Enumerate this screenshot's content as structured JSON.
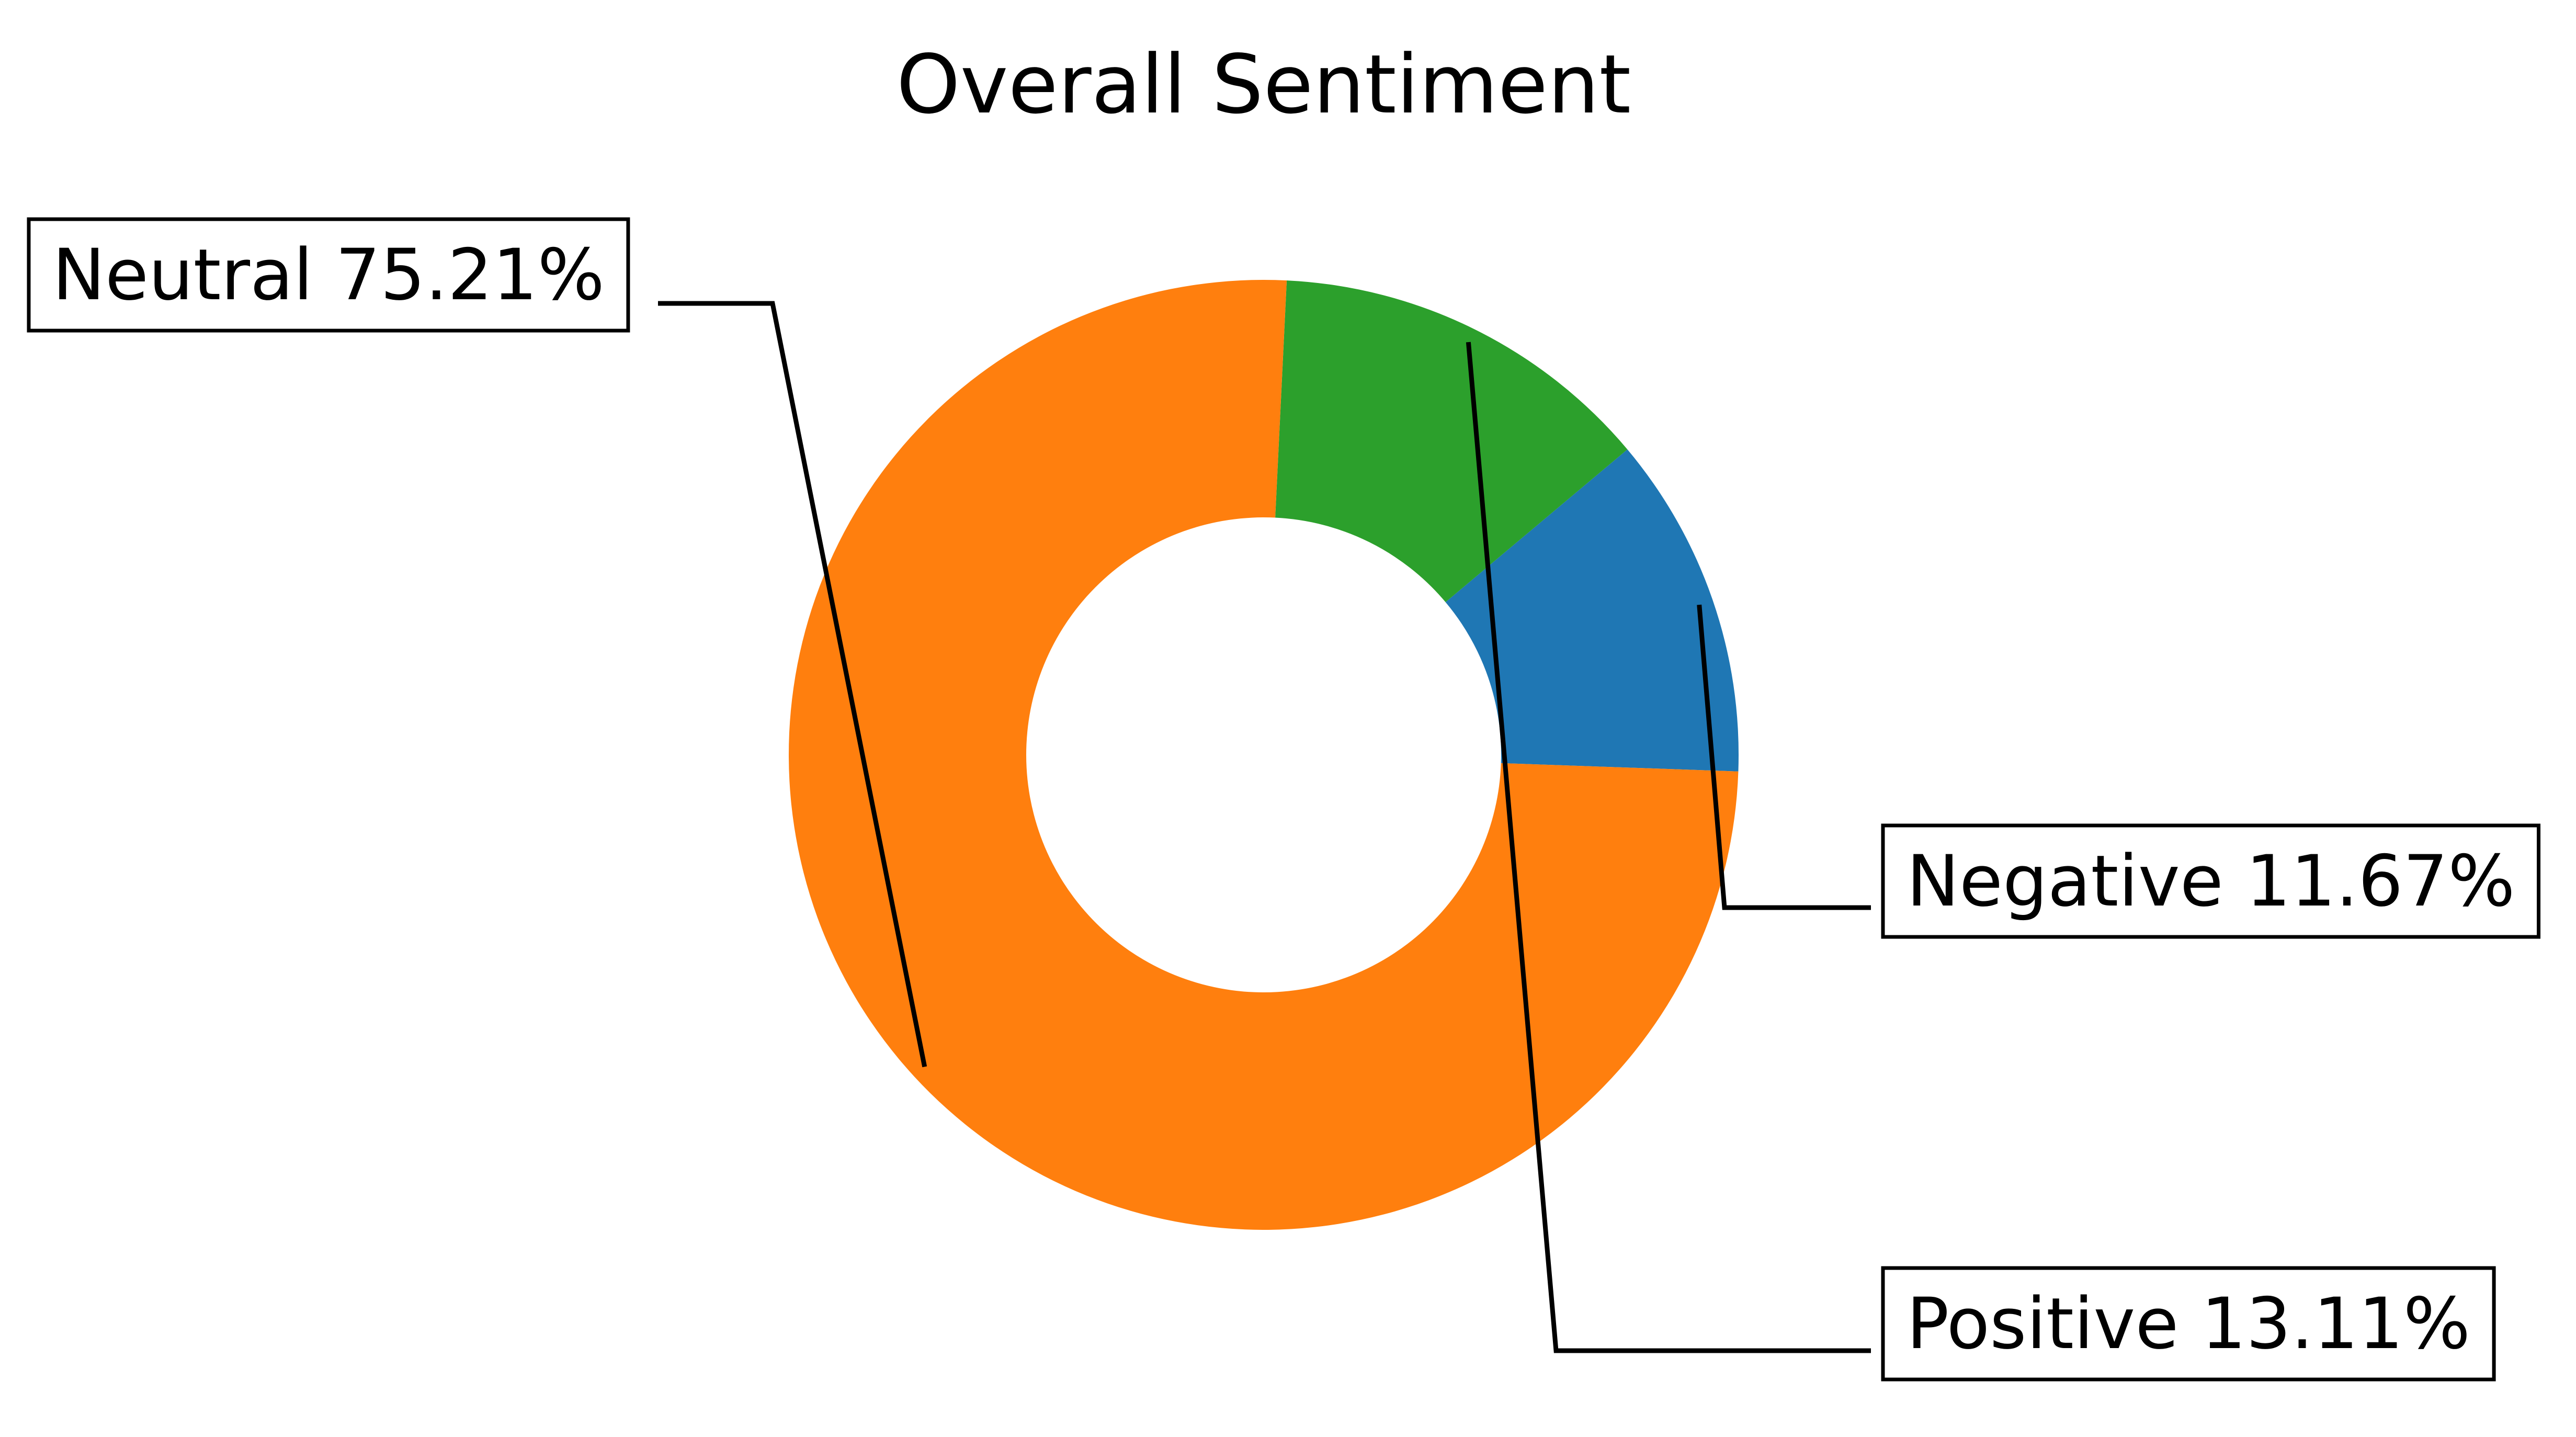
{
  "chart_data": {
    "type": "pie",
    "title": "Overall Sentiment",
    "donut": true,
    "start_angle_deg": -2,
    "direction": "counterclockwise",
    "slices": [
      {
        "label": "Negative",
        "value": 11.67,
        "display": "Negative 11.67%",
        "color": "#1f77b4"
      },
      {
        "label": "Positive",
        "value": 13.11,
        "display": "Positive 13.11%",
        "color": "#2ca02c"
      },
      {
        "label": "Neutral",
        "value": 75.21,
        "display": "Neutral 75.21%",
        "color": "#ff7f0e"
      }
    ]
  }
}
